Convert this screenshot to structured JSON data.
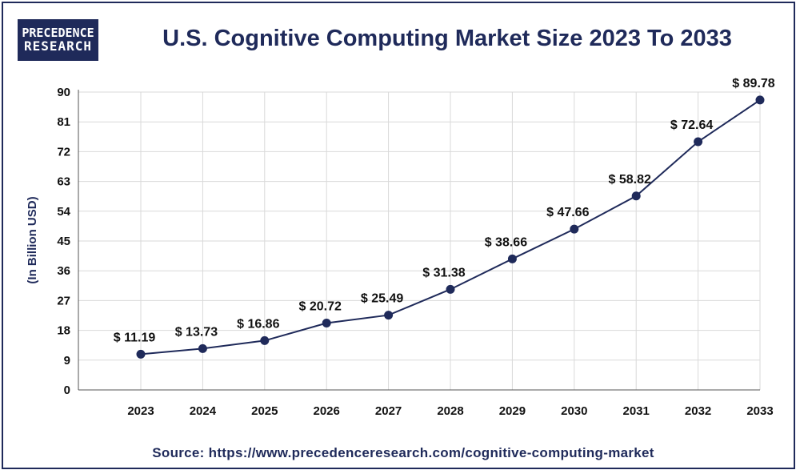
{
  "logo": {
    "line1": "PRECEDENCE",
    "line2": "RESEARCH"
  },
  "title": "U.S. Cognitive Computing Market Size 2023 To 2033",
  "source": "Source: https://www.precedenceresearch.com/cognitive-computing-market",
  "colors": {
    "brand": "#1f2a5a",
    "grid": "#d9d9d9"
  },
  "chart_data": {
    "type": "line",
    "title": "U.S. Cognitive Computing Market Size 2023 To 2033",
    "xlabel": "",
    "ylabel": "(In Billion USD)",
    "categories": [
      "2023",
      "2024",
      "2025",
      "2026",
      "2027",
      "2028",
      "2029",
      "2030",
      "2031",
      "2032",
      "2033"
    ],
    "values": [
      11.19,
      13.73,
      16.86,
      20.72,
      25.49,
      31.38,
      38.66,
      47.66,
      58.82,
      72.64,
      89.78
    ],
    "point_positions": [
      10.8,
      12.5,
      14.9,
      20.2,
      22.6,
      30.4,
      39.6,
      48.6,
      58.6,
      75.0,
      87.6
    ],
    "labels": [
      "$ 11.19",
      "$ 13.73",
      "$ 16.86",
      "$ 20.72",
      "$ 25.49",
      "$ 31.38",
      "$ 38.66",
      "$ 47.66",
      "$ 58.82",
      "$ 72.64",
      "$ 89.78"
    ],
    "yticks": [
      0,
      9,
      18,
      27,
      36,
      45,
      54,
      63,
      72,
      81,
      90
    ],
    "ylim": [
      0,
      90
    ],
    "grid": true
  }
}
